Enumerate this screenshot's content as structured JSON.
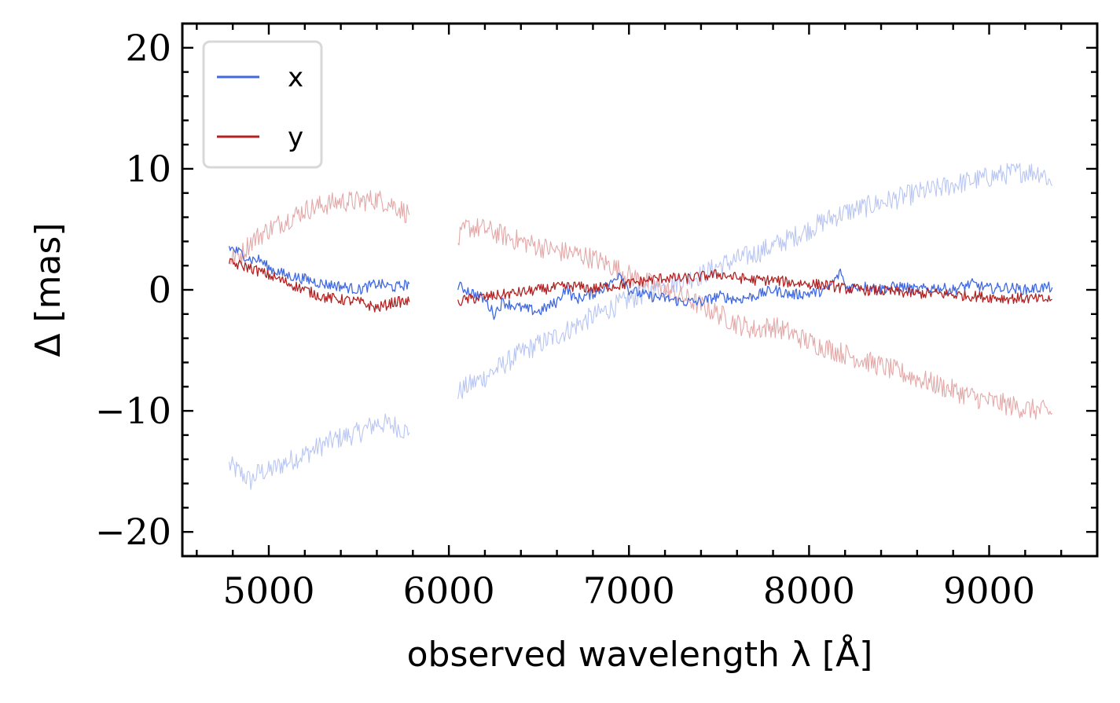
{
  "chart_data": {
    "type": "line",
    "title": "",
    "xlabel": "observed wavelength λ [Å]",
    "ylabel": "Δ [mas]",
    "xlim": [
      4520,
      9600
    ],
    "ylim": [
      -22,
      22
    ],
    "xticks": [
      5000,
      6000,
      7000,
      8000,
      9000
    ],
    "xtick_labels": [
      "5000",
      "6000",
      "7000",
      "8000",
      "9000"
    ],
    "yticks": [
      -20,
      -10,
      0,
      10,
      20
    ],
    "ytick_labels": [
      "−20",
      "−10",
      "0",
      "10",
      "20"
    ],
    "grid": false,
    "legend": {
      "placement": "top-left",
      "entries": [
        {
          "label": "x",
          "color": "#4169e1"
        },
        {
          "label": "y",
          "color": "#b22222"
        }
      ]
    },
    "series": [
      {
        "name": "",
        "color": "#b9c6f2",
        "segments": [
          {
            "x": [
              4780,
              4850,
              4900,
              4950,
              5000,
              5100,
              5200,
              5300,
              5400,
              5500,
              5600,
              5700,
              5780
            ],
            "y": [
              -14.5,
              -15.2,
              -15.8,
              -15.0,
              -15.0,
              -14.2,
              -13.6,
              -12.8,
              -12.2,
              -11.8,
              -11.0,
              -11.2,
              -11.8
            ]
          },
          {
            "x": [
              6050,
              6100,
              6200,
              6300,
              6400,
              6500,
              6600,
              6700,
              6800,
              6900,
              7000,
              7100,
              7200,
              7300,
              7400,
              7500,
              7600,
              7700,
              7800,
              7900,
              8000,
              8100,
              8200,
              8300,
              8400,
              8500,
              8600,
              8700,
              8800,
              8900,
              9000,
              9100,
              9200,
              9300,
              9350
            ],
            "y": [
              -8.5,
              -8.0,
              -7.2,
              -6.2,
              -5.2,
              -4.5,
              -3.8,
              -3.0,
              -2.2,
              -1.5,
              -0.8,
              -0.2,
              0.3,
              0.8,
              1.2,
              2.0,
              2.5,
              3.0,
              3.6,
              4.3,
              5.0,
              5.8,
              6.4,
              6.8,
              7.2,
              7.6,
              8.0,
              8.3,
              8.7,
              9.0,
              9.3,
              9.6,
              9.8,
              9.7,
              8.6
            ]
          }
        ]
      },
      {
        "name": "",
        "color": "#e3a8a8",
        "segments": [
          {
            "x": [
              4780,
              4850,
              4900,
              4950,
              5000,
              5100,
              5200,
              5300,
              5400,
              5500,
              5600,
              5700,
              5780
            ],
            "y": [
              2.5,
              3.0,
              4.0,
              4.5,
              5.0,
              5.8,
              6.6,
              7.0,
              7.3,
              7.3,
              7.5,
              7.0,
              6.2
            ]
          },
          {
            "x": [
              6050,
              6100,
              6200,
              6300,
              6400,
              6500,
              6600,
              6700,
              6800,
              6900,
              7000,
              7100,
              7200,
              7300,
              7400,
              7500,
              7600,
              7700,
              7800,
              7900,
              8000,
              8100,
              8200,
              8300,
              8400,
              8500,
              8600,
              8700,
              8800,
              8900,
              9000,
              9100,
              9200,
              9300,
              9350
            ],
            "y": [
              4.0,
              5.2,
              5.0,
              4.5,
              4.0,
              3.6,
              3.2,
              3.0,
              2.6,
              2.0,
              1.2,
              0.6,
              0.0,
              -0.6,
              -1.3,
              -2.0,
              -2.8,
              -3.3,
              -3.0,
              -3.6,
              -4.3,
              -4.8,
              -5.3,
              -5.8,
              -6.3,
              -6.8,
              -7.3,
              -7.8,
              -8.3,
              -8.8,
              -9.2,
              -9.5,
              -9.8,
              -10.0,
              -10.2
            ]
          }
        ]
      },
      {
        "name": "x",
        "color": "#4169e1",
        "segments": [
          {
            "x": [
              4780,
              4850,
              4900,
              4950,
              5000,
              5100,
              5200,
              5300,
              5400,
              5500,
              5600,
              5700,
              5780
            ],
            "y": [
              3.5,
              3.0,
              2.5,
              2.5,
              1.8,
              1.2,
              0.9,
              0.5,
              0.3,
              0.0,
              0.5,
              0.2,
              0.5
            ]
          },
          {
            "x": [
              6050,
              6100,
              6200,
              6250,
              6300,
              6400,
              6500,
              6600,
              6650,
              6700,
              6800,
              6900,
              6950,
              7000,
              7100,
              7200,
              7300,
              7400,
              7500,
              7600,
              7700,
              7800,
              7900,
              8000,
              8100,
              8180,
              8200,
              8300,
              8400,
              8500,
              8600,
              8700,
              8800,
              8900,
              9000,
              9100,
              9200,
              9300,
              9350
            ],
            "y": [
              0.3,
              0.0,
              -0.8,
              -2.0,
              -1.0,
              -1.5,
              -1.8,
              -1.0,
              0.2,
              -0.8,
              -0.3,
              0.5,
              1.5,
              0.0,
              -0.5,
              -0.7,
              -1.0,
              -1.0,
              -0.5,
              -0.8,
              -0.5,
              0.0,
              -0.4,
              -0.3,
              0.0,
              1.5,
              0.2,
              0.3,
              0.1,
              0.3,
              0.0,
              0.2,
              0.0,
              0.5,
              0.1,
              0.2,
              0.0,
              0.2,
              0.2
            ]
          }
        ]
      },
      {
        "name": "y",
        "color": "#b22222",
        "segments": [
          {
            "x": [
              4780,
              4850,
              4900,
              4950,
              5000,
              5100,
              5200,
              5300,
              5400,
              5500,
              5600,
              5700,
              5780
            ],
            "y": [
              2.2,
              2.0,
              1.8,
              1.5,
              1.2,
              0.6,
              0.0,
              -0.6,
              -0.8,
              -1.0,
              -1.5,
              -1.0,
              -1.0
            ]
          },
          {
            "x": [
              6050,
              6100,
              6200,
              6300,
              6400,
              6500,
              6600,
              6700,
              6800,
              6900,
              7000,
              7100,
              7200,
              7300,
              7400,
              7500,
              7600,
              7700,
              7800,
              7900,
              8000,
              8100,
              8200,
              8300,
              8400,
              8500,
              8600,
              8700,
              8800,
              8900,
              9000,
              9100,
              9200,
              9300,
              9350
            ],
            "y": [
              -1.0,
              -0.8,
              -0.6,
              -0.4,
              -0.2,
              0.0,
              0.2,
              0.3,
              0.1,
              0.3,
              0.5,
              0.8,
              1.0,
              0.9,
              1.1,
              1.3,
              1.0,
              0.8,
              0.8,
              0.6,
              0.5,
              0.4,
              0.1,
              0.0,
              -0.1,
              -0.2,
              -0.3,
              -0.3,
              -0.4,
              -0.5,
              -0.6,
              -0.7,
              -0.7,
              -0.8,
              -0.8
            ]
          }
        ]
      }
    ]
  }
}
